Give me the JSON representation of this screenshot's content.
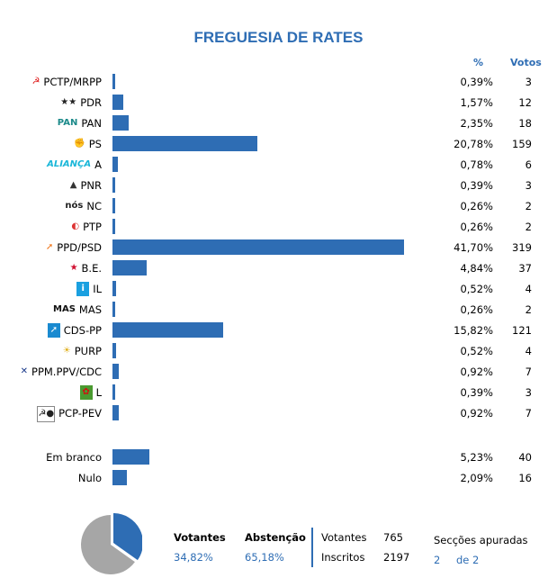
{
  "title": "FREGUESIA DE RATES",
  "headers": {
    "pct": "%",
    "votes": "Votos"
  },
  "chart_data": {
    "type": "bar",
    "title": "FREGUESIA DE RATES",
    "orientation": "horizontal",
    "categories": [
      "PCTP/MRPP",
      "PDR",
      "PAN",
      "PS",
      "A",
      "PNR",
      "NC",
      "PTP",
      "PPD/PSD",
      "B.E.",
      "IL",
      "MAS",
      "CDS-PP",
      "PURP",
      "PPM.PPV/CDC",
      "L",
      "PCP-PEV"
    ],
    "pct_labels": [
      "0,39%",
      "1,57%",
      "2,35%",
      "20,78%",
      "0,78%",
      "0,39%",
      "0,26%",
      "0,26%",
      "41,70%",
      "4,84%",
      "0,52%",
      "0,26%",
      "15,82%",
      "0,52%",
      "0,92%",
      "0,39%",
      "0,92%"
    ],
    "values": [
      0.39,
      1.57,
      2.35,
      20.78,
      0.78,
      0.39,
      0.26,
      0.26,
      41.7,
      4.84,
      0.52,
      0.26,
      15.82,
      0.52,
      0.92,
      0.39,
      0.92
    ],
    "votes": [
      "3",
      "12",
      "18",
      "159",
      "6",
      "3",
      "2",
      "2",
      "319",
      "37",
      "4",
      "2",
      "121",
      "4",
      "7",
      "3",
      "7"
    ],
    "extra_categories": [
      "Em branco",
      "Nulo"
    ],
    "extra_values": [
      5.23,
      2.09
    ],
    "extra_pct_labels": [
      "5,23%",
      "2,09%"
    ],
    "extra_votes": [
      "40",
      "16"
    ],
    "color": "#2e6db4"
  },
  "logos": [
    {
      "icon": "hammer-sickle-icon",
      "text": "☭",
      "color": "#e02020"
    },
    {
      "icon": "stars-icon",
      "text": "★★",
      "color": "#222"
    },
    {
      "icon": "pan-logo-icon",
      "text": "PAN",
      "color": "#1c8a8a"
    },
    {
      "icon": "ps-fist-icon",
      "text": "✊",
      "color": "#e0303a"
    },
    {
      "icon": "alianca-logo-icon",
      "text": "ALIANÇA",
      "color": "#18b6d8"
    },
    {
      "icon": "pnr-flame-icon",
      "text": "▲",
      "color": "#333"
    },
    {
      "icon": "nos-logo-icon",
      "text": "nós",
      "color": "#222"
    },
    {
      "icon": "ptp-logo-icon",
      "text": "◐",
      "color": "#d33"
    },
    {
      "icon": "psd-arrow-icon",
      "text": "➚",
      "color": "#f07010"
    },
    {
      "icon": "be-star-icon",
      "text": "★",
      "color": "#d01030"
    },
    {
      "icon": "il-info-icon",
      "text": "i",
      "color": "#fff"
    },
    {
      "icon": "mas-logo-icon",
      "text": "MAS",
      "color": "#111"
    },
    {
      "icon": "cds-logo-icon",
      "text": "➚",
      "color": "#fff"
    },
    {
      "icon": "purp-sun-icon",
      "text": "☀",
      "color": "#e0b020"
    },
    {
      "icon": "ppm-logo-icon",
      "text": "✕",
      "color": "#1a3a8a"
    },
    {
      "icon": "livre-poppy-icon",
      "text": "✿",
      "color": "#d01010"
    },
    {
      "icon": "pcp-pev-logo-icon",
      "text": "☭●",
      "color": "#222"
    }
  ],
  "summary": {
    "votantes_label": "Votantes",
    "votantes_pct": "34,82%",
    "abstencao_label": "Abstenção",
    "abstencao_pct": "65,18%",
    "votantes_count_label": "Votantes",
    "votantes_count": "765",
    "inscritos_label": "Inscritos",
    "inscritos_count": "2197",
    "seccoes_label": "Secções apuradas",
    "seccoes_done": "2",
    "seccoes_total": "de 2",
    "pie": {
      "votantes": 34.82,
      "abstencao": 65.18,
      "colors": [
        "#2e6db4",
        "#a6a6a6"
      ]
    }
  }
}
